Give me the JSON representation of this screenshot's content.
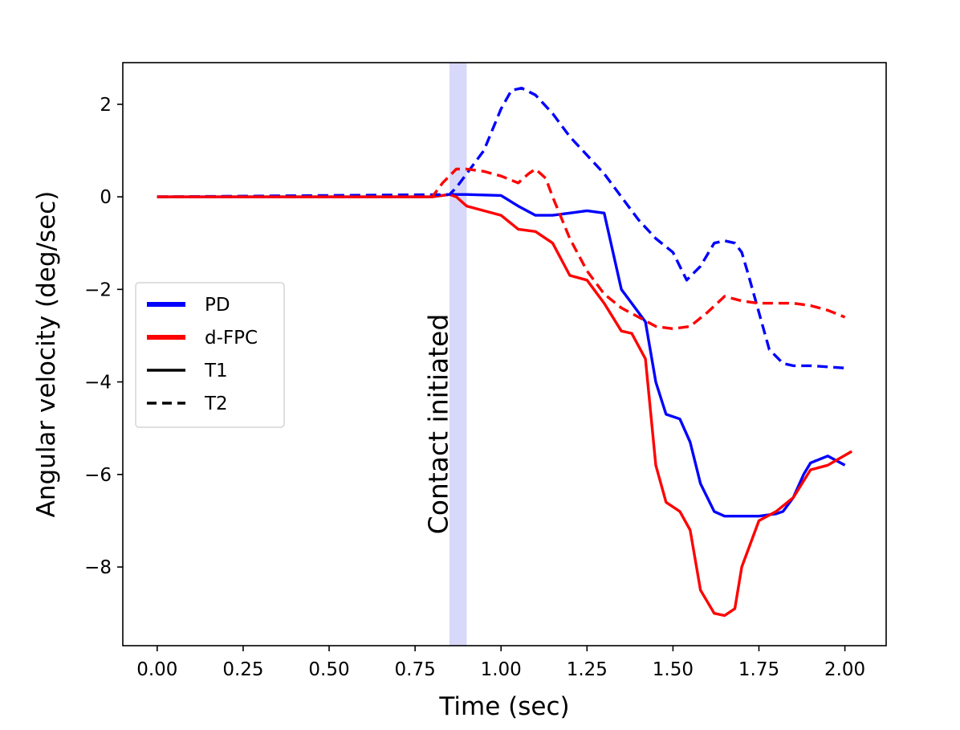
{
  "chart_data": {
    "type": "line",
    "title": "",
    "xlabel": "Time (sec)",
    "ylabel": "Angular velocity (deg/sec)",
    "xlim": [
      -0.1,
      2.12
    ],
    "ylim": [
      -9.7,
      2.9
    ],
    "xticks": [
      0.0,
      0.25,
      0.5,
      0.75,
      1.0,
      1.25,
      1.5,
      1.75,
      2.0
    ],
    "xtick_labels": [
      "0.00",
      "0.25",
      "0.50",
      "0.75",
      "1.00",
      "1.25",
      "1.50",
      "1.75",
      "2.00"
    ],
    "yticks": [
      2,
      0,
      -2,
      -4,
      -6,
      -8
    ],
    "ytick_labels": [
      "2",
      "0",
      "−2",
      "−4",
      "−6",
      "−8"
    ],
    "grid": false,
    "legend_position": "center-left",
    "legend": [
      {
        "label": "PD",
        "color": "#0000ff",
        "style": "solid-thick"
      },
      {
        "label": "d-FPC",
        "color": "#ff0000",
        "style": "solid-thick"
      },
      {
        "label": "T1",
        "color": "#000000",
        "style": "solid"
      },
      {
        "label": "T2",
        "color": "#000000",
        "style": "dashed"
      }
    ],
    "annotation": {
      "label": "Contact initiated",
      "x_start": 0.85,
      "x_end": 0.9,
      "color": "#d8d8fa"
    },
    "series": [
      {
        "name": "PD",
        "dash": "solid",
        "color": "#0000ff",
        "x": [
          0.0,
          0.8,
          0.85,
          0.9,
          0.95,
          1.0,
          1.05,
          1.1,
          1.15,
          1.2,
          1.25,
          1.3,
          1.35,
          1.38,
          1.42,
          1.45,
          1.48,
          1.52,
          1.55,
          1.58,
          1.62,
          1.65,
          1.7,
          1.75,
          1.8,
          1.82,
          1.85,
          1.88,
          1.9,
          1.95,
          2.0
        ],
        "y": [
          0.0,
          0.0,
          0.05,
          0.05,
          0.04,
          0.03,
          -0.2,
          -0.4,
          -0.4,
          -0.35,
          -0.3,
          -0.35,
          -2.0,
          -2.3,
          -2.7,
          -4.0,
          -4.7,
          -4.8,
          -5.3,
          -6.2,
          -6.8,
          -6.9,
          -6.9,
          -6.9,
          -6.85,
          -6.8,
          -6.5,
          -6.0,
          -5.75,
          -5.6,
          -5.8
        ]
      },
      {
        "name": "d-FPC",
        "dash": "solid",
        "color": "#ff0000",
        "x": [
          0.0,
          0.8,
          0.85,
          0.87,
          0.9,
          0.95,
          1.0,
          1.05,
          1.1,
          1.15,
          1.2,
          1.25,
          1.3,
          1.35,
          1.38,
          1.42,
          1.45,
          1.48,
          1.52,
          1.55,
          1.58,
          1.62,
          1.65,
          1.68,
          1.7,
          1.75,
          1.8,
          1.85,
          1.9,
          1.95,
          2.02
        ],
        "y": [
          0.0,
          0.0,
          0.05,
          0.0,
          -0.2,
          -0.3,
          -0.4,
          -0.7,
          -0.75,
          -1.0,
          -1.7,
          -1.8,
          -2.3,
          -2.9,
          -2.95,
          -3.5,
          -5.8,
          -6.6,
          -6.8,
          -7.2,
          -8.5,
          -9.0,
          -9.05,
          -8.9,
          -8.0,
          -7.0,
          -6.8,
          -6.5,
          -5.9,
          -5.8,
          -5.5
        ]
      },
      {
        "name": "PD",
        "dash": "dashed",
        "color": "#0000ff",
        "x": [
          0.0,
          0.85,
          0.87,
          0.9,
          0.95,
          1.0,
          1.03,
          1.06,
          1.1,
          1.15,
          1.2,
          1.25,
          1.3,
          1.35,
          1.4,
          1.45,
          1.5,
          1.54,
          1.58,
          1.62,
          1.65,
          1.68,
          1.7,
          1.72,
          1.75,
          1.78,
          1.82,
          1.85,
          1.9,
          2.0
        ],
        "y": [
          0.0,
          0.05,
          0.2,
          0.5,
          1.0,
          1.9,
          2.3,
          2.35,
          2.2,
          1.8,
          1.3,
          0.9,
          0.5,
          0.0,
          -0.5,
          -0.9,
          -1.2,
          -1.8,
          -1.5,
          -1.0,
          -0.95,
          -1.0,
          -1.2,
          -1.7,
          -2.5,
          -3.3,
          -3.6,
          -3.65,
          -3.65,
          -3.7
        ]
      },
      {
        "name": "d-FPC",
        "dash": "dashed",
        "color": "#ff0000",
        "x": [
          0.0,
          0.8,
          0.83,
          0.87,
          0.9,
          0.95,
          1.0,
          1.05,
          1.08,
          1.1,
          1.13,
          1.15,
          1.2,
          1.25,
          1.3,
          1.35,
          1.4,
          1.45,
          1.5,
          1.55,
          1.6,
          1.65,
          1.7,
          1.75,
          1.8,
          1.85,
          1.9,
          1.95,
          2.0
        ],
        "y": [
          0.0,
          0.0,
          0.3,
          0.6,
          0.6,
          0.55,
          0.45,
          0.3,
          0.5,
          0.6,
          0.4,
          0.0,
          -0.9,
          -1.6,
          -2.1,
          -2.4,
          -2.6,
          -2.8,
          -2.85,
          -2.8,
          -2.5,
          -2.15,
          -2.25,
          -2.3,
          -2.3,
          -2.3,
          -2.35,
          -2.45,
          -2.6
        ]
      }
    ]
  }
}
